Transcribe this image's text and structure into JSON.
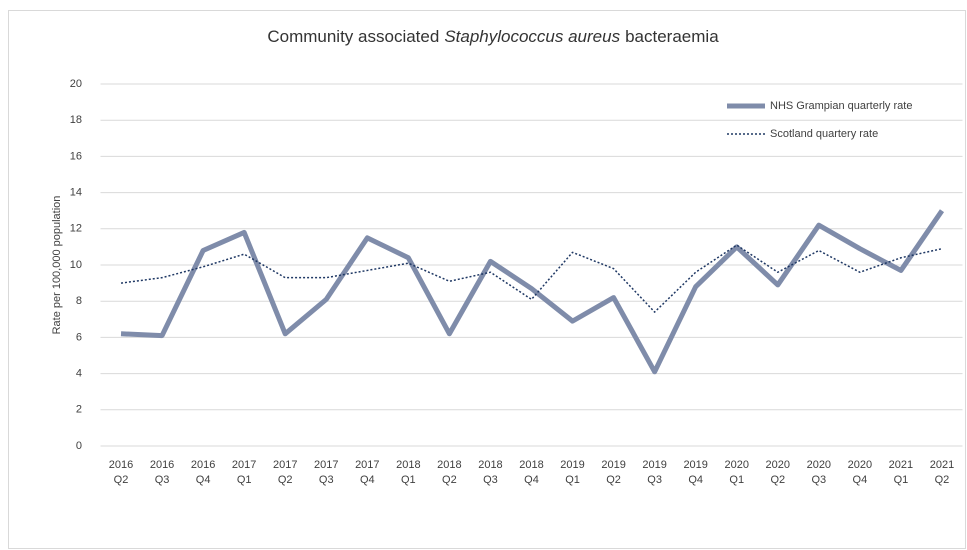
{
  "chart_data": {
    "type": "line",
    "title": [
      "Community associated",
      "Staphylococcus aureus",
      "bacteraemia"
    ],
    "y_label": "Rate per 100,000 population",
    "categories": [
      [
        "2016",
        "Q2"
      ],
      [
        "2016",
        "Q3"
      ],
      [
        "2016",
        "Q4"
      ],
      [
        "2017",
        "Q1"
      ],
      [
        "2017",
        "Q2"
      ],
      [
        "2017",
        "Q3"
      ],
      [
        "2017",
        "Q4"
      ],
      [
        "2018",
        "Q1"
      ],
      [
        "2018",
        "Q2"
      ],
      [
        "2018",
        "Q3"
      ],
      [
        "2018",
        "Q4"
      ],
      [
        "2019",
        "Q1"
      ],
      [
        "2019",
        "Q2"
      ],
      [
        "2019",
        "Q3"
      ],
      [
        "2019",
        "Q4"
      ],
      [
        "2020",
        "Q1"
      ],
      [
        "2020",
        "Q2"
      ],
      [
        "2020",
        "Q3"
      ],
      [
        "2020",
        "Q4"
      ],
      [
        "2021",
        "Q1"
      ],
      [
        "2021",
        "Q2"
      ]
    ],
    "series": [
      {
        "name": "NHS Grampian quarterly rate",
        "color": "#7f8caa",
        "style": "solid",
        "values": [
          6.2,
          6.1,
          10.8,
          11.8,
          6.2,
          8.1,
          11.5,
          10.4,
          6.2,
          10.2,
          8.7,
          6.9,
          8.2,
          4.1,
          8.8,
          11.0,
          8.9,
          12.2,
          10.9,
          9.7,
          13.0
        ]
      },
      {
        "name": "Scotland quartery rate",
        "color": "#1f3864",
        "style": "dotted",
        "values": [
          9.0,
          9.3,
          9.9,
          10.6,
          9.3,
          9.3,
          9.7,
          10.1,
          9.1,
          9.6,
          8.1,
          10.7,
          9.8,
          7.4,
          9.6,
          11.1,
          9.6,
          10.8,
          9.6,
          10.4,
          10.9
        ]
      }
    ],
    "ylim": [
      0,
      20
    ],
    "yticks": [
      0,
      2,
      4,
      6,
      8,
      10,
      12,
      14,
      16,
      18,
      20
    ],
    "grid": true,
    "legend": "top-right"
  }
}
